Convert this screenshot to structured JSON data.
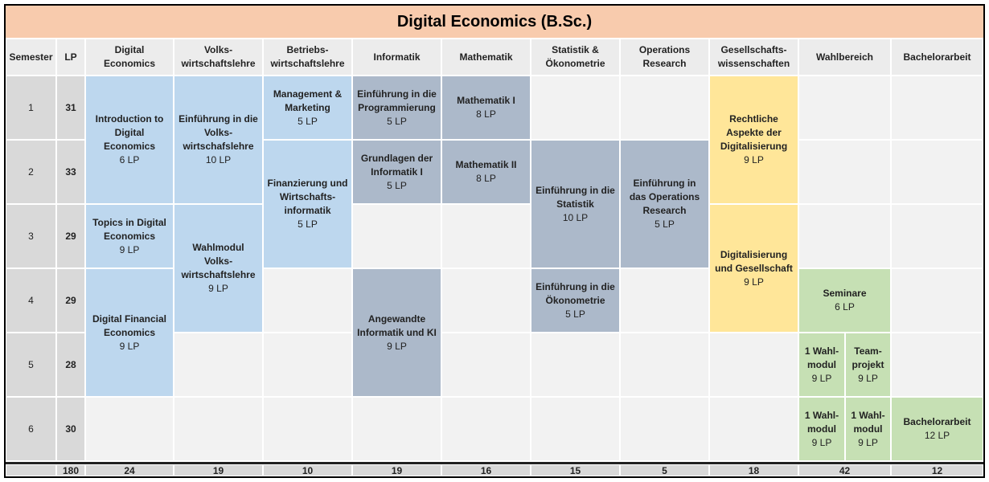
{
  "title": "Digital Economics (B.Sc.)",
  "header": [
    "Semester",
    "LP",
    "Digital Economics",
    "Volks-wirtschaftslehre",
    "Betriebs-wirtschaftslehre",
    "Informatik",
    "Mathematik",
    "Statistik & Ökonometrie",
    "Operations Research",
    "Gesellschafts-wissenschaften",
    "Wahlbereich",
    "Bachelorarbeit"
  ],
  "semesters": [
    {
      "semester": 1,
      "lp": 31
    },
    {
      "semester": 2,
      "lp": 33
    },
    {
      "semester": 3,
      "lp": 29
    },
    {
      "semester": 4,
      "lp": 29
    },
    {
      "semester": 5,
      "lp": 28
    },
    {
      "semester": 6,
      "lp": 30
    }
  ],
  "modules": [
    {
      "name": "Introduction to Digital Economics",
      "lp": "6 LP"
    },
    {
      "name": "Topics in Digital Economics",
      "lp": "9 LP"
    },
    {
      "name": "Digital Financial Economics",
      "lp": "9 LP"
    },
    {
      "name": "Einführung in die Volks-wirtschafslehre",
      "lp": "10 LP"
    },
    {
      "name": "Wahlmodul Volks-wirtschaftslehre",
      "lp": "9 LP"
    },
    {
      "name": "Management & Marketing",
      "lp": "5 LP"
    },
    {
      "name": "Finanzierung und Wirtschafts-informatik",
      "lp": "5 LP"
    },
    {
      "name": "Einführung in die Programmierung",
      "lp": "5 LP"
    },
    {
      "name": "Grundlagen der Informatik I",
      "lp": "5 LP"
    },
    {
      "name": "Angewandte Informatik und KI",
      "lp": "9 LP"
    },
    {
      "name": "Mathematik I",
      "lp": "8 LP"
    },
    {
      "name": "Mathematik II",
      "lp": "8 LP"
    },
    {
      "name": "Einführung in die Statistik",
      "lp": "10 LP"
    },
    {
      "name": "Einführung in die Ökonometrie",
      "lp": "5 LP"
    },
    {
      "name": "Einführung in das Operations Research",
      "lp": "5 LP"
    },
    {
      "name": "Rechtliche Aspekte der Digitalisierung",
      "lp": "9 LP"
    },
    {
      "name": "Digitalisierung und Gesellschaft",
      "lp": "9 LP"
    },
    {
      "name": "Seminare",
      "lp": "6 LP"
    },
    {
      "name": "1 Wahl-modul",
      "lp": "9 LP"
    },
    {
      "name": "Team-projekt",
      "lp": "9 LP"
    },
    {
      "name": "1 Wahl-modul",
      "lp": "9 LP"
    },
    {
      "name": "1 Wahl-modul",
      "lp": "9 LP"
    },
    {
      "name": "Bachelorarbeit",
      "lp": "12 LP"
    }
  ],
  "totals": [
    180,
    24,
    19,
    10,
    19,
    16,
    15,
    5,
    18,
    42,
    12
  ]
}
